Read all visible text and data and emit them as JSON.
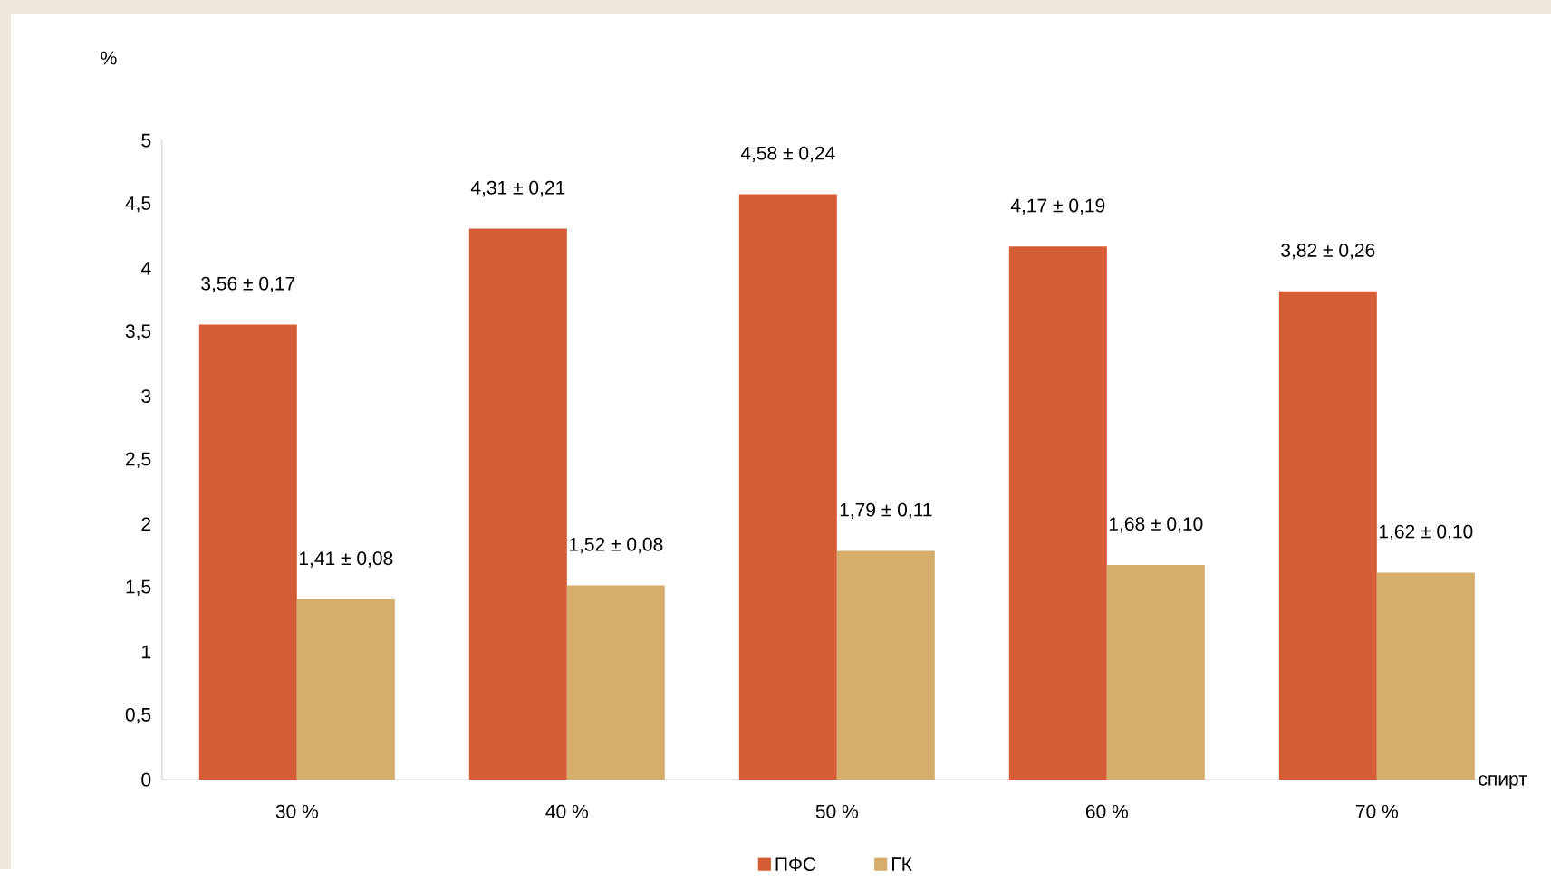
{
  "chart_data": {
    "type": "bar",
    "categories": [
      "30 %",
      "40 %",
      "50 %",
      "60 %",
      "70 %"
    ],
    "xlabel": "спирт",
    "ylabel": "%",
    "ylim": [
      0,
      5
    ],
    "yticks": [
      0,
      {
        "value": 0.5,
        "label": "0,5"
      },
      1,
      {
        "value": 1.5,
        "label": "1,5"
      },
      2,
      {
        "value": 2.5,
        "label": "2,5"
      },
      3,
      {
        "value": 3.5,
        "label": "3,5"
      },
      4,
      {
        "value": 4.5,
        "label": "4,5"
      },
      5
    ],
    "grid": false,
    "legend": "bottom",
    "series": [
      {
        "name": "ПФС",
        "color": "#d45d35",
        "values": [
          3.56,
          4.31,
          4.58,
          4.17,
          3.82
        ],
        "value_labels": [
          "3,56 ± 0,17",
          "4,31 ± 0,21",
          "4,58 ± 0,24",
          "4,17 ± 0,19",
          "3,82 ± 0,26"
        ]
      },
      {
        "name": "ГК",
        "color": "#d6ae6c",
        "values": [
          1.41,
          1.52,
          1.79,
          1.68,
          1.62
        ],
        "value_labels": [
          "1,41 ± 0,08",
          "1,52 ± 0,08",
          "1,79 ± 0,11",
          "1,68 ± 0,10",
          "1,62 ± 0,10"
        ]
      }
    ]
  }
}
